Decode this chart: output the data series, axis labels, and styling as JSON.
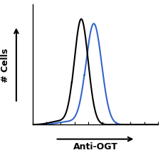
{
  "title": "",
  "xlabel": "Anti-OGT",
  "ylabel": "# Cells",
  "background_color": "#ffffff",
  "plot_bg_color": "#ffffff",
  "black_curve": {
    "color": "#000000",
    "mean": 2.05,
    "std": 0.22,
    "peak": 0.92,
    "linewidth": 1.5
  },
  "blue_curve": {
    "color": "#3366cc",
    "mean": 2.45,
    "std": 0.25,
    "peak": 0.88,
    "linewidth": 1.5
  },
  "xmin": 0.5,
  "xmax": 4.5,
  "ymin": 0.0,
  "ymax": 1.05,
  "figsize": [
    2.29,
    2.26
  ],
  "dpi": 100,
  "xlabel_fontsize": 9,
  "ylabel_fontsize": 9,
  "xlabel_fontweight": "bold",
  "ylabel_fontweight": "bold",
  "arrow_color": "#000000"
}
